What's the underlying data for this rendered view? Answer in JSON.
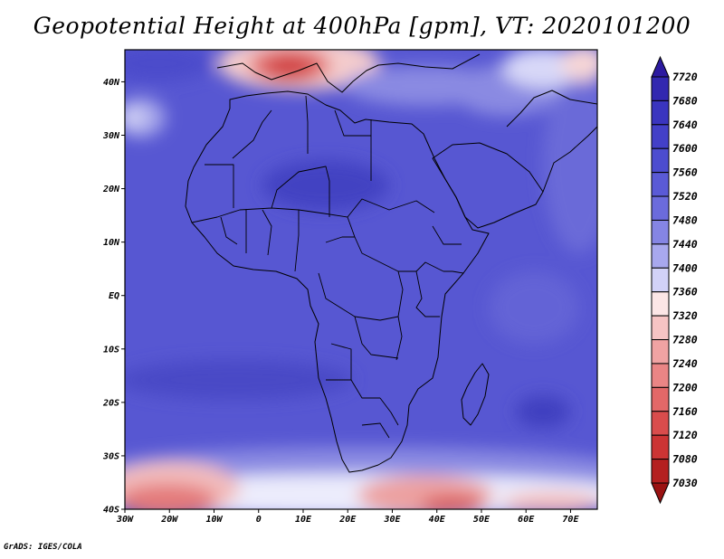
{
  "title": "Geopotential Height at 400hPa [gpm], VT: 2020101200",
  "credit": "GrADS: IGES/COLA",
  "map": {
    "extent": {
      "lon_min": -30,
      "lon_max": 76,
      "lat_min": -40,
      "lat_max": 46
    },
    "x_ticks": [
      {
        "lon": -30,
        "label": "30W"
      },
      {
        "lon": -20,
        "label": "20W"
      },
      {
        "lon": -10,
        "label": "10W"
      },
      {
        "lon": 0,
        "label": "0"
      },
      {
        "lon": 10,
        "label": "10E"
      },
      {
        "lon": 20,
        "label": "20E"
      },
      {
        "lon": 30,
        "label": "30E"
      },
      {
        "lon": 40,
        "label": "40E"
      },
      {
        "lon": 50,
        "label": "50E"
      },
      {
        "lon": 60,
        "label": "60E"
      },
      {
        "lon": 70,
        "label": "70E"
      }
    ],
    "y_ticks": [
      {
        "lat": 40,
        "label": "40N"
      },
      {
        "lat": 30,
        "label": "30N"
      },
      {
        "lat": 20,
        "label": "20N"
      },
      {
        "lat": 10,
        "label": "10N"
      },
      {
        "lat": 0,
        "label": "EQ"
      },
      {
        "lat": -10,
        "label": "10S"
      },
      {
        "lat": -20,
        "label": "20S"
      },
      {
        "lat": -30,
        "label": "30S"
      },
      {
        "lat": -40,
        "label": "40S"
      }
    ]
  },
  "colorbar": {
    "levels": [
      "7720",
      "7680",
      "7640",
      "7600",
      "7560",
      "7520",
      "7480",
      "7440",
      "7400",
      "7360",
      "7320",
      "7280",
      "7240",
      "7200",
      "7160",
      "7120",
      "7080",
      "7030"
    ],
    "colors": [
      "#2c1aa0",
      "#3228b0",
      "#3a35bf",
      "#4340c8",
      "#4c4ccf",
      "#5a5ad6",
      "#6b6bdc",
      "#8585e4",
      "#a8a8ee",
      "#d2d2f8",
      "#fce6e6",
      "#f6c4c4",
      "#f0a3a3",
      "#ea8585",
      "#e26868",
      "#d94c4c",
      "#cc3434",
      "#b42020",
      "#9a1212"
    ]
  }
}
